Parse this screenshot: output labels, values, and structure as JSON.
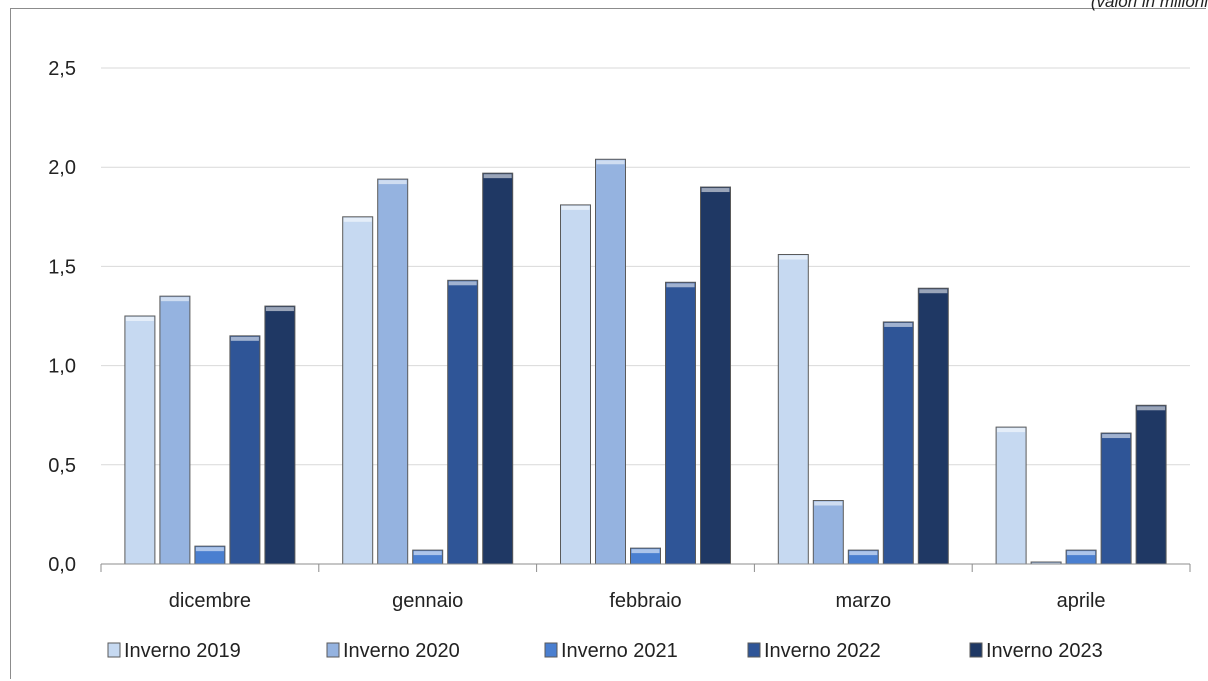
{
  "units_note": "(valori in milioni",
  "chart_data": {
    "type": "bar",
    "categories": [
      "dicembre",
      "gennaio",
      "febbraio",
      "marzo",
      "aprile"
    ],
    "series": [
      {
        "name": "Inverno 2019",
        "values": [
          1.25,
          1.75,
          1.81,
          1.56,
          0.69
        ],
        "color": "#c6d9f1"
      },
      {
        "name": "Inverno 2020",
        "values": [
          1.35,
          1.94,
          2.04,
          0.32,
          0.01
        ],
        "color": "#95b3e0"
      },
      {
        "name": "Inverno 2021",
        "values": [
          0.09,
          0.07,
          0.08,
          0.07,
          0.07
        ],
        "color": "#4a7fd0"
      },
      {
        "name": "Inverno 2022",
        "values": [
          1.15,
          1.43,
          1.42,
          1.22,
          0.66
        ],
        "color": "#2f5597"
      },
      {
        "name": "Inverno 2023",
        "values": [
          1.3,
          1.97,
          1.9,
          1.39,
          0.8
        ],
        "color": "#1f3864"
      }
    ],
    "yticks": [
      "0,0",
      "0,5",
      "1,0",
      "1,5",
      "2,0",
      "2,5"
    ],
    "ylim": [
      0,
      2.5
    ],
    "grid": true,
    "legend": "bottom"
  }
}
